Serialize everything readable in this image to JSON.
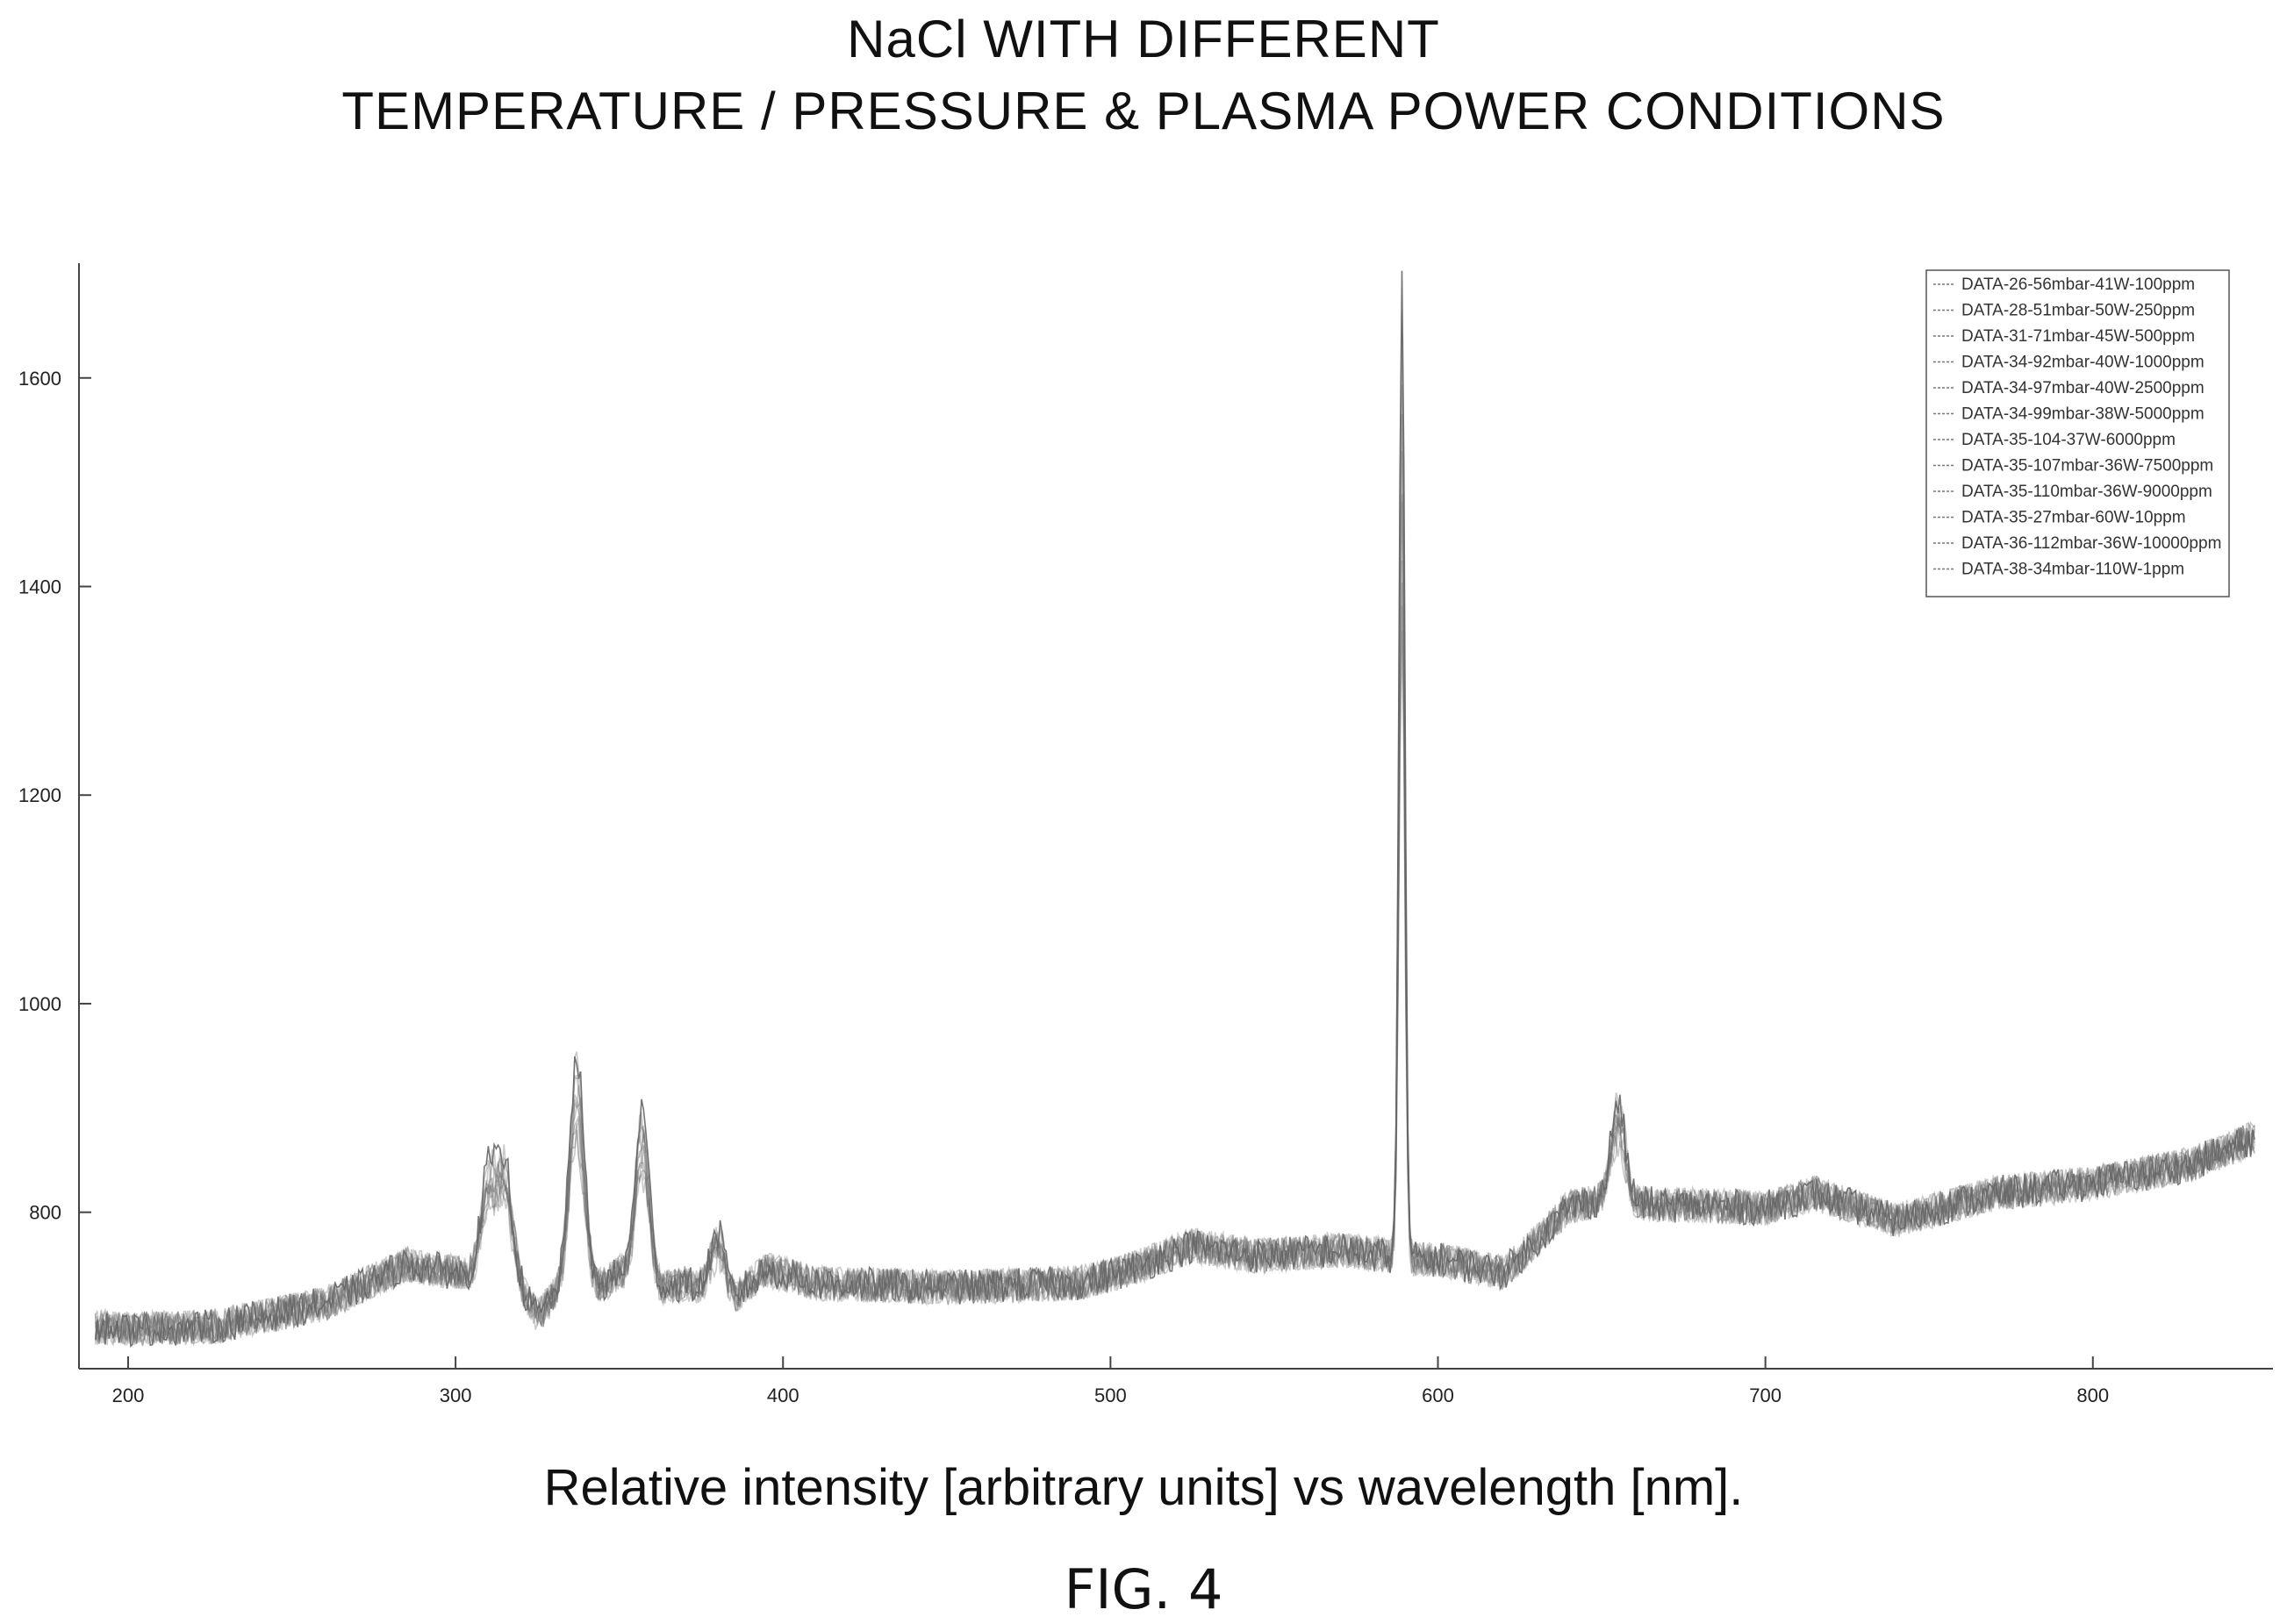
{
  "chart_data": {
    "type": "line",
    "title": "NaCl WITH DIFFERENT",
    "subtitle": "TEMPERATURE / PRESSURE & PLASMA POWER CONDITIONS",
    "caption": "Relative intensity [arbitrary units] vs wavelength [nm].",
    "figure_label": "FIG. 4",
    "xlabel": "",
    "ylabel": "",
    "xlim": [
      185,
      855
    ],
    "ylim": [
      650,
      1710
    ],
    "x_ticks": [
      200,
      300,
      400,
      500,
      600,
      700,
      800
    ],
    "y_ticks": [
      800,
      1000,
      1200,
      1400,
      1600
    ],
    "grid": false,
    "legend_position": "top-right",
    "line_color": "#666666",
    "baseline": [
      [
        190,
        690
      ],
      [
        200,
        688
      ],
      [
        225,
        690
      ],
      [
        260,
        712
      ],
      [
        285,
        750
      ],
      [
        300,
        742
      ],
      [
        318,
        738
      ],
      [
        325,
        700
      ],
      [
        332,
        728
      ],
      [
        345,
        730
      ],
      [
        350,
        742
      ],
      [
        360,
        724
      ],
      [
        370,
        732
      ],
      [
        385,
        718
      ],
      [
        395,
        745
      ],
      [
        410,
        732
      ],
      [
        450,
        728
      ],
      [
        490,
        732
      ],
      [
        505,
        744
      ],
      [
        525,
        768
      ],
      [
        545,
        758
      ],
      [
        570,
        764
      ],
      [
        586,
        758
      ],
      [
        592,
        755
      ],
      [
        600,
        755
      ],
      [
        620,
        742
      ],
      [
        628,
        766
      ],
      [
        640,
        805
      ],
      [
        650,
        812
      ],
      [
        665,
        808
      ],
      [
        700,
        804
      ],
      [
        715,
        818
      ],
      [
        740,
        792
      ],
      [
        770,
        818
      ],
      [
        800,
        828
      ],
      [
        830,
        846
      ],
      [
        850,
        872
      ]
    ],
    "peaks": [
      {
        "x": 310,
        "y": 840
      },
      {
        "x": 315,
        "y": 845
      },
      {
        "x": 337,
        "y": 950
      },
      {
        "x": 357,
        "y": 898
      },
      {
        "x": 380,
        "y": 780
      },
      {
        "x": 589,
        "y": 1700
      },
      {
        "x": 655,
        "y": 905
      }
    ],
    "series": [
      {
        "name": "DATA-26-56mbar-41W-100ppm"
      },
      {
        "name": "DATA-28-51mbar-50W-250ppm"
      },
      {
        "name": "DATA-31-71mbar-45W-500ppm"
      },
      {
        "name": "DATA-34-92mbar-40W-1000ppm"
      },
      {
        "name": "DATA-34-97mbar-40W-2500ppm"
      },
      {
        "name": "DATA-34-99mbar-38W-5000ppm"
      },
      {
        "name": "DATA-35-104-37W-6000ppm"
      },
      {
        "name": "DATA-35-107mbar-36W-7500ppm"
      },
      {
        "name": "DATA-35-110mbar-36W-9000ppm"
      },
      {
        "name": "DATA-35-27mbar-60W-10ppm"
      },
      {
        "name": "DATA-36-112mbar-36W-10000ppm"
      },
      {
        "name": "DATA-38-34mbar-110W-1ppm"
      }
    ]
  }
}
